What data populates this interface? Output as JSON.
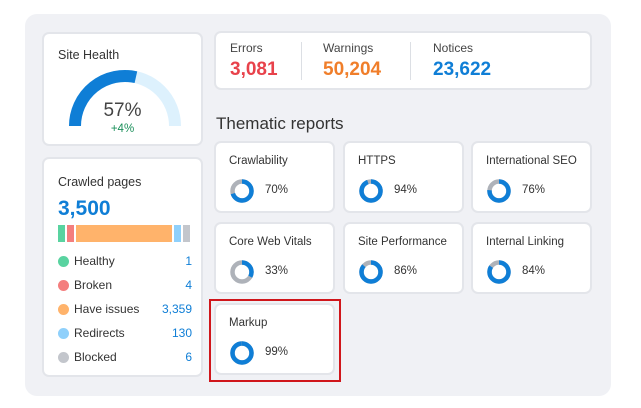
{
  "colors": {
    "accent_blue": "#0f7ed6",
    "errors": "#e8424b",
    "warnings": "#f07e2a",
    "notices": "#0f7ed6",
    "healthy": "#59d3a0",
    "broken": "#f47e7e",
    "have_issues": "#ffb36b",
    "redirects": "#8fd0fb",
    "blocked": "#c3c6cc",
    "highlight": "#d0161b"
  },
  "site_health": {
    "title": "Site Health",
    "percent_label": "57%",
    "percent": 57,
    "delta": "+4%"
  },
  "crawled": {
    "title": "Crawled pages",
    "total": "3,500",
    "items": [
      {
        "label": "Healthy",
        "value": "1",
        "count": 1,
        "color": "#59d3a0"
      },
      {
        "label": "Broken",
        "value": "4",
        "count": 4,
        "color": "#f47e7e"
      },
      {
        "label": "Have issues",
        "value": "3,359",
        "count": 3359,
        "color": "#ffb36b"
      },
      {
        "label": "Redirects",
        "value": "130",
        "count": 130,
        "color": "#8fd0fb"
      },
      {
        "label": "Blocked",
        "value": "6",
        "count": 6,
        "color": "#c3c6cc"
      }
    ]
  },
  "totals": {
    "errors_label": "Errors",
    "errors_value": "3,081",
    "warnings_label": "Warnings",
    "warnings_value": "50,204",
    "notices_label": "Notices",
    "notices_value": "23,622"
  },
  "thematic": {
    "title": "Thematic reports",
    "reports": [
      {
        "name": "Crawlability",
        "percent_label": "70%",
        "percent": 70
      },
      {
        "name": "HTTPS",
        "percent_label": "94%",
        "percent": 94
      },
      {
        "name": "International SEO",
        "percent_label": "76%",
        "percent": 76
      },
      {
        "name": "Core Web Vitals",
        "percent_label": "33%",
        "percent": 33
      },
      {
        "name": "Site Performance",
        "percent_label": "86%",
        "percent": 86
      },
      {
        "name": "Internal Linking",
        "percent_label": "84%",
        "percent": 84
      },
      {
        "name": "Markup",
        "percent_label": "99%",
        "percent": 99
      }
    ]
  }
}
